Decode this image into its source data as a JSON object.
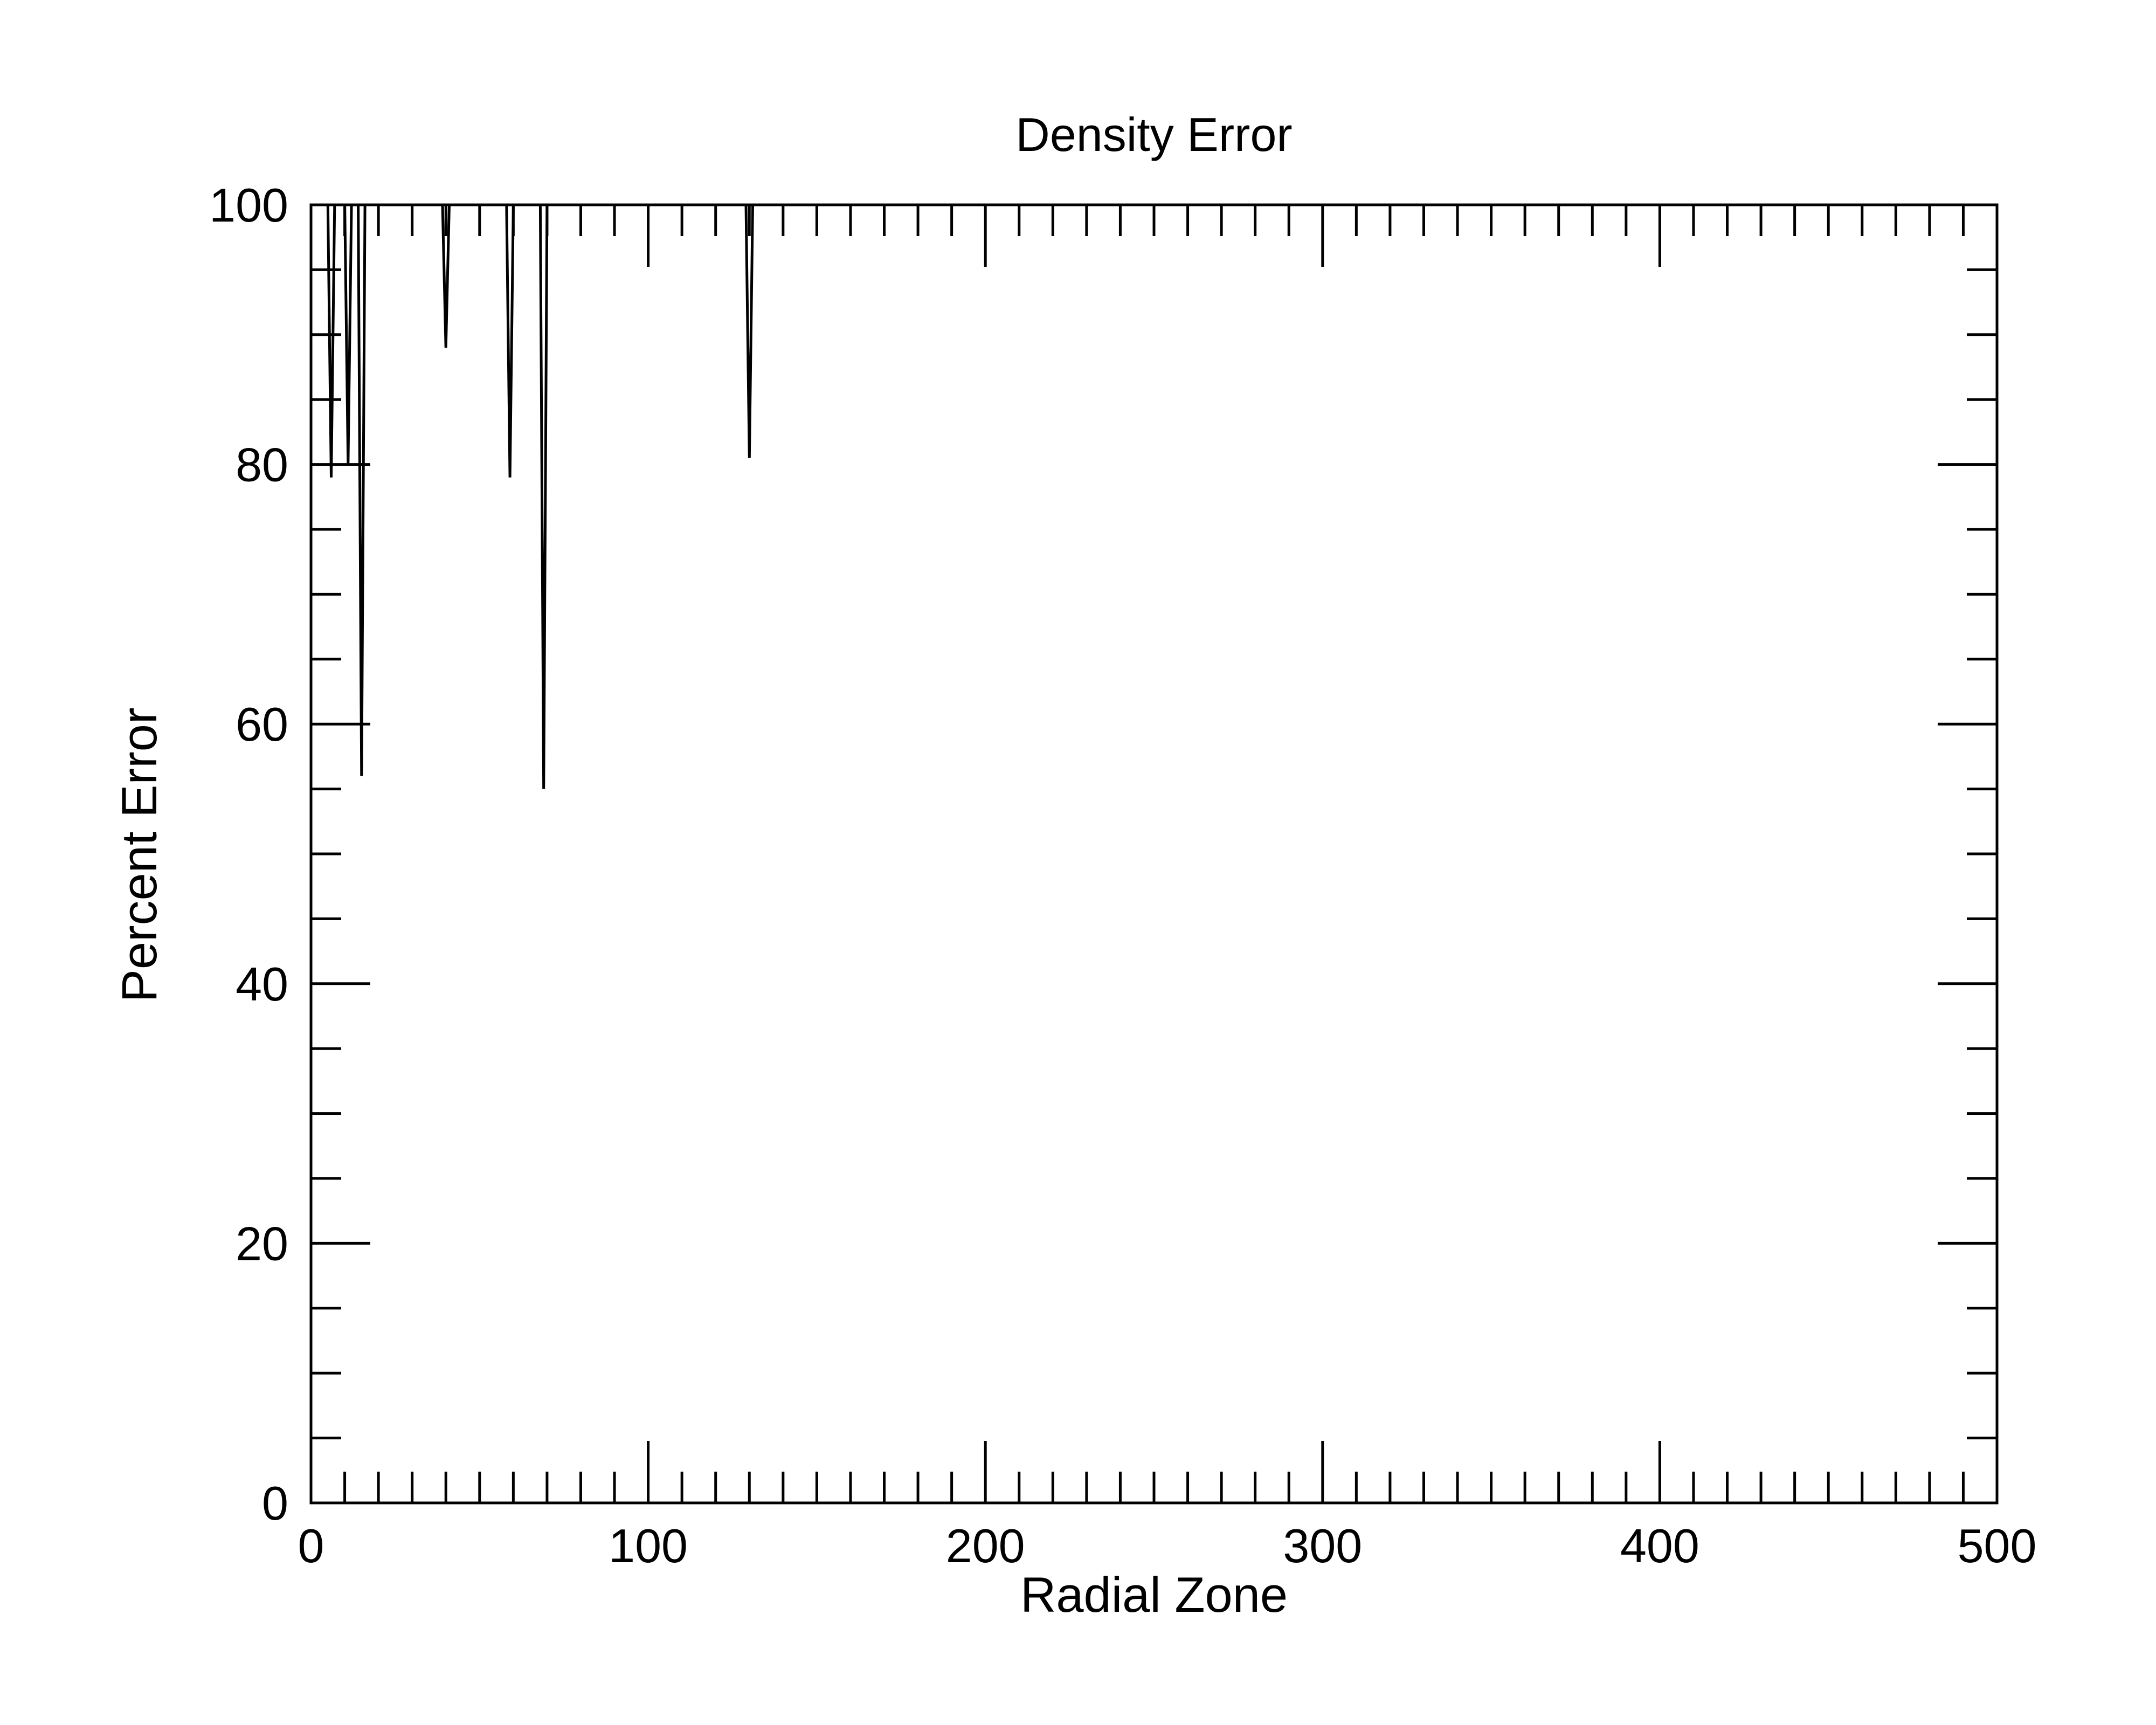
{
  "chart_data": {
    "type": "line",
    "title": "Density Error",
    "xlabel": "Radial Zone",
    "ylabel": "Percent Error",
    "xlim": [
      0,
      500
    ],
    "ylim": [
      0,
      100
    ],
    "x_ticks": [
      "0",
      "100",
      "200",
      "300",
      "400",
      "500"
    ],
    "y_ticks": [
      "0",
      "20",
      "40",
      "60",
      "80",
      "100"
    ],
    "x_minor_step": 10,
    "y_minor_step": 5,
    "grid": false,
    "legend": "none",
    "line_color": "#000000",
    "series": [
      {
        "x": [
          0,
          1,
          2,
          3,
          4,
          5,
          6,
          7,
          8,
          9,
          10,
          11,
          12,
          13,
          14,
          15,
          16,
          17,
          18,
          19,
          20,
          21,
          22,
          25,
          30,
          35,
          38,
          39,
          40,
          41,
          42,
          45,
          50,
          55,
          58,
          59,
          60,
          61,
          62,
          65,
          67,
          68,
          69,
          70,
          71,
          72,
          75,
          80,
          90,
          100,
          110,
          120,
          128,
          129,
          130,
          131,
          132,
          140,
          150,
          200,
          250,
          300,
          350,
          400,
          450,
          500
        ],
        "y": [
          100,
          100,
          100,
          100,
          100,
          100,
          79,
          100,
          100,
          100,
          100,
          80,
          100,
          100,
          100,
          56,
          100,
          100,
          100,
          100,
          100,
          100,
          100,
          100,
          100,
          100,
          100,
          100,
          89,
          100,
          100,
          100,
          100,
          100,
          100,
          79,
          100,
          100,
          100,
          100,
          100,
          100,
          55,
          100,
          100,
          100,
          100,
          100,
          100,
          100,
          100,
          100,
          100,
          100,
          80.5,
          100,
          100,
          100,
          100,
          100,
          100,
          100,
          100,
          100,
          100,
          100
        ]
      }
    ]
  }
}
